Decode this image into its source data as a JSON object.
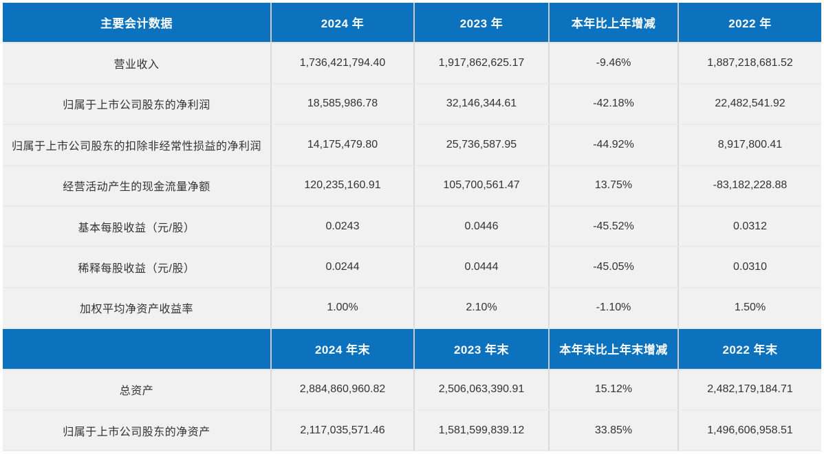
{
  "colors": {
    "header_bg": "#0d72bd",
    "header_text": "#ffffff",
    "row_bg": "#f1f1f1",
    "row_text": "#333333"
  },
  "table": {
    "header_row_1": [
      "主要会计数据",
      "2024 年",
      "2023 年",
      "本年比上年增减",
      "2022 年"
    ],
    "rows_1": [
      [
        "营业收入",
        "1,736,421,794.40",
        "1,917,862,625.17",
        "-9.46%",
        "1,887,218,681.52"
      ],
      [
        "归属于上市公司股东的净利润",
        "18,585,986.78",
        "32,146,344.61",
        "-42.18%",
        "22,482,541.92"
      ],
      [
        "归属于上市公司股东的扣除非经常性损益的净利润",
        "14,175,479.80",
        "25,736,587.95",
        "-44.92%",
        "8,917,800.41"
      ],
      [
        "经营活动产生的现金流量净额",
        "120,235,160.91",
        "105,700,561.47",
        "13.75%",
        "-83,182,228.88"
      ],
      [
        "基本每股收益（元/股）",
        "0.0243",
        "0.0446",
        "-45.52%",
        "0.0312"
      ],
      [
        "稀释每股收益（元/股）",
        "0.0244",
        "0.0444",
        "-45.05%",
        "0.0310"
      ],
      [
        "加权平均净资产收益率",
        "1.00%",
        "2.10%",
        "-1.10%",
        "1.50%"
      ]
    ],
    "header_row_2": [
      "",
      "2024 年末",
      "2023 年末",
      "本年末比上年末增减",
      "2022 年末"
    ],
    "rows_2": [
      [
        "总资产",
        "2,884,860,960.82",
        "2,506,063,390.91",
        "15.12%",
        "2,482,179,184.71"
      ],
      [
        "归属于上市公司股东的净资产",
        "2,117,035,571.46",
        "1,581,599,839.12",
        "33.85%",
        "1,496,606,958.51"
      ]
    ]
  }
}
